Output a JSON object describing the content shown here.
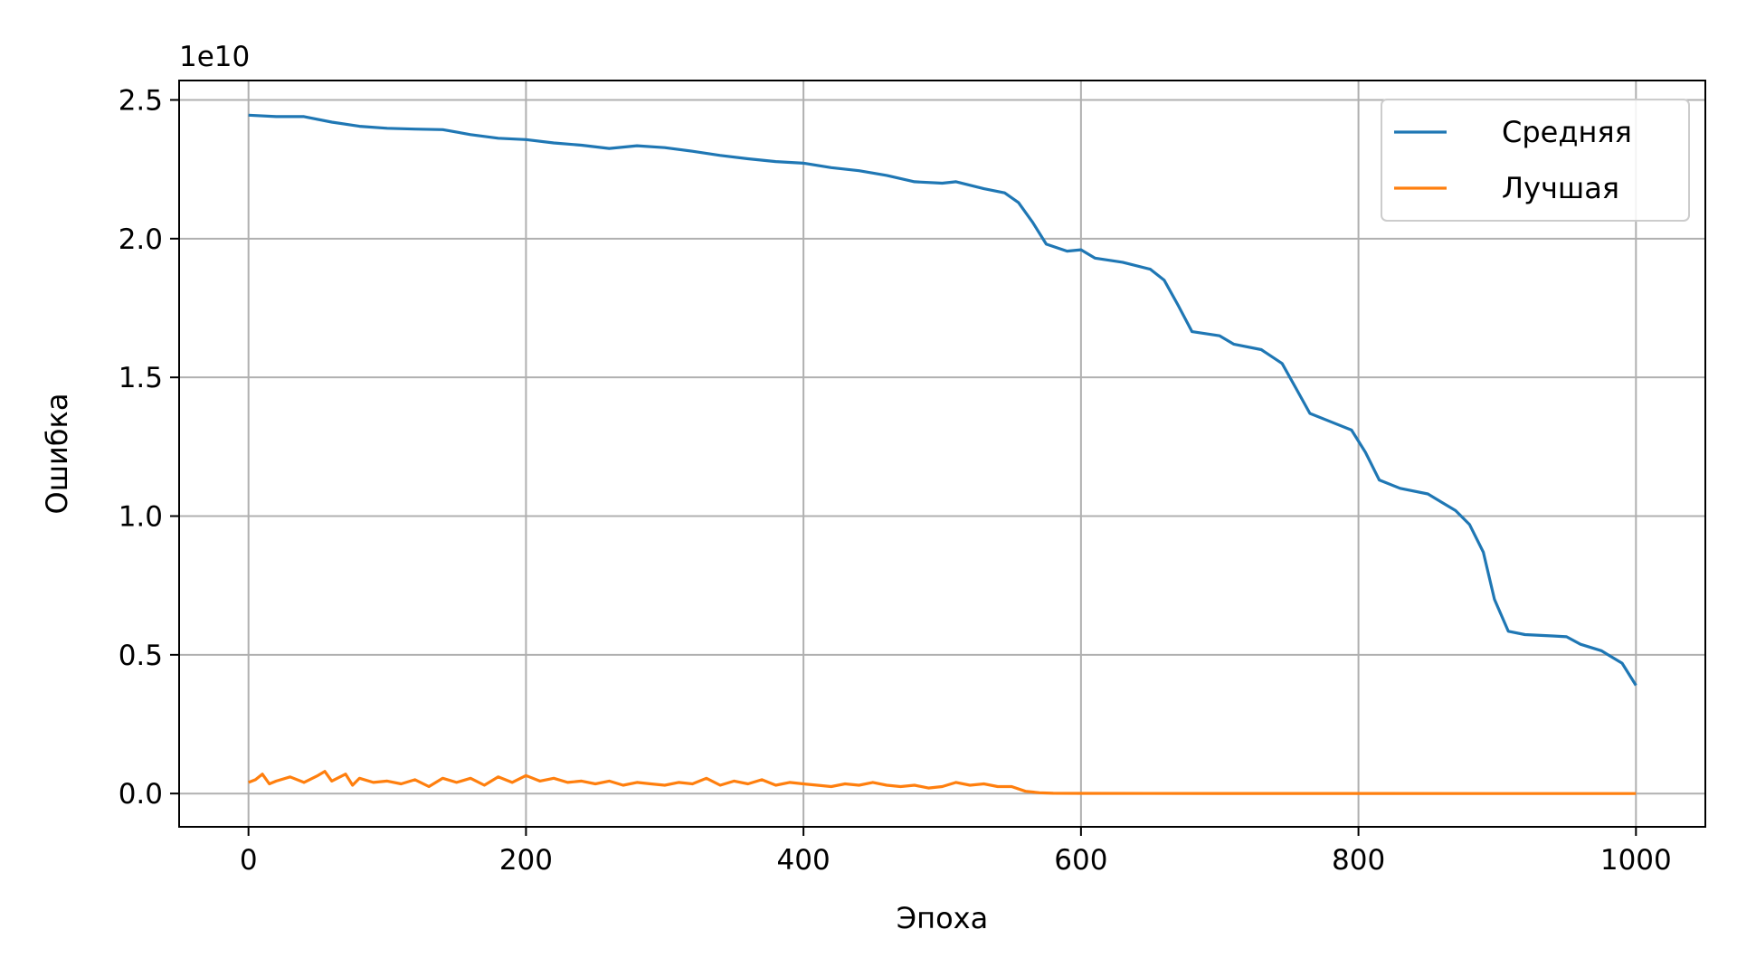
{
  "chart_data": {
    "type": "line",
    "xlabel": "Эпоха",
    "ylabel": "Ошибка",
    "offset_text": "1e10",
    "xlim": [
      -50,
      1050
    ],
    "ylim": [
      -1200000000,
      25700000000
    ],
    "grid": true,
    "legend_position": "top-right",
    "x_ticks": [
      0,
      200,
      400,
      600,
      800,
      1000
    ],
    "x_tick_labels": [
      "0",
      "200",
      "400",
      "600",
      "800",
      "1000"
    ],
    "y_ticks": [
      0,
      5000000000,
      10000000000,
      15000000000,
      20000000000,
      25000000000
    ],
    "y_tick_labels": [
      "0.0",
      "0.5",
      "1.0",
      "1.5",
      "2.0",
      "2.5"
    ],
    "series": [
      {
        "name": "Средняя",
        "color": "#1f77b4",
        "points": [
          [
            0,
            24450000000
          ],
          [
            20,
            24400000000
          ],
          [
            40,
            24400000000
          ],
          [
            60,
            24200000000
          ],
          [
            80,
            24050000000
          ],
          [
            100,
            23980000000
          ],
          [
            120,
            23950000000
          ],
          [
            140,
            23930000000
          ],
          [
            160,
            23750000000
          ],
          [
            180,
            23620000000
          ],
          [
            200,
            23570000000
          ],
          [
            220,
            23450000000
          ],
          [
            240,
            23370000000
          ],
          [
            260,
            23250000000
          ],
          [
            280,
            23350000000
          ],
          [
            300,
            23280000000
          ],
          [
            320,
            23150000000
          ],
          [
            340,
            23000000000
          ],
          [
            360,
            22880000000
          ],
          [
            380,
            22780000000
          ],
          [
            400,
            22720000000
          ],
          [
            420,
            22560000000
          ],
          [
            440,
            22450000000
          ],
          [
            460,
            22280000000
          ],
          [
            480,
            22050000000
          ],
          [
            500,
            22000000000
          ],
          [
            510,
            22050000000
          ],
          [
            530,
            21800000000
          ],
          [
            545,
            21650000000
          ],
          [
            555,
            21300000000
          ],
          [
            565,
            20600000000
          ],
          [
            575,
            19800000000
          ],
          [
            590,
            19550000000
          ],
          [
            600,
            19600000000
          ],
          [
            610,
            19300000000
          ],
          [
            630,
            19150000000
          ],
          [
            650,
            18900000000
          ],
          [
            660,
            18500000000
          ],
          [
            670,
            17600000000
          ],
          [
            680,
            16650000000
          ],
          [
            700,
            16500000000
          ],
          [
            710,
            16200000000
          ],
          [
            730,
            16000000000
          ],
          [
            745,
            15500000000
          ],
          [
            755,
            14600000000
          ],
          [
            765,
            13700000000
          ],
          [
            780,
            13400000000
          ],
          [
            795,
            13100000000
          ],
          [
            805,
            12300000000
          ],
          [
            815,
            11300000000
          ],
          [
            830,
            11000000000
          ],
          [
            850,
            10800000000
          ],
          [
            860,
            10500000000
          ],
          [
            870,
            10200000000
          ],
          [
            880,
            9700000000
          ],
          [
            890,
            8700000000
          ],
          [
            898,
            7000000000
          ],
          [
            908,
            5850000000
          ],
          [
            920,
            5730000000
          ],
          [
            940,
            5680000000
          ],
          [
            950,
            5650000000
          ],
          [
            960,
            5380000000
          ],
          [
            975,
            5150000000
          ],
          [
            990,
            4700000000
          ],
          [
            1000,
            3900000000
          ]
        ]
      },
      {
        "name": "Лучшая",
        "color": "#ff7f0e",
        "points": [
          [
            0,
            400000000
          ],
          [
            5,
            500000000
          ],
          [
            10,
            700000000
          ],
          [
            15,
            350000000
          ],
          [
            20,
            450000000
          ],
          [
            30,
            600000000
          ],
          [
            40,
            400000000
          ],
          [
            50,
            650000000
          ],
          [
            55,
            800000000
          ],
          [
            60,
            450000000
          ],
          [
            70,
            700000000
          ],
          [
            75,
            300000000
          ],
          [
            80,
            550000000
          ],
          [
            90,
            400000000
          ],
          [
            100,
            450000000
          ],
          [
            110,
            350000000
          ],
          [
            120,
            500000000
          ],
          [
            130,
            250000000
          ],
          [
            140,
            550000000
          ],
          [
            150,
            400000000
          ],
          [
            160,
            550000000
          ],
          [
            170,
            300000000
          ],
          [
            180,
            600000000
          ],
          [
            190,
            400000000
          ],
          [
            200,
            650000000
          ],
          [
            210,
            450000000
          ],
          [
            220,
            550000000
          ],
          [
            230,
            400000000
          ],
          [
            240,
            450000000
          ],
          [
            250,
            350000000
          ],
          [
            260,
            450000000
          ],
          [
            270,
            300000000
          ],
          [
            280,
            400000000
          ],
          [
            290,
            350000000
          ],
          [
            300,
            300000000
          ],
          [
            310,
            400000000
          ],
          [
            320,
            350000000
          ],
          [
            330,
            550000000
          ],
          [
            340,
            300000000
          ],
          [
            350,
            450000000
          ],
          [
            360,
            350000000
          ],
          [
            370,
            500000000
          ],
          [
            380,
            300000000
          ],
          [
            390,
            400000000
          ],
          [
            400,
            350000000
          ],
          [
            410,
            300000000
          ],
          [
            420,
            250000000
          ],
          [
            430,
            350000000
          ],
          [
            440,
            300000000
          ],
          [
            450,
            400000000
          ],
          [
            460,
            300000000
          ],
          [
            470,
            250000000
          ],
          [
            480,
            300000000
          ],
          [
            490,
            200000000
          ],
          [
            500,
            250000000
          ],
          [
            510,
            400000000
          ],
          [
            520,
            300000000
          ],
          [
            530,
            350000000
          ],
          [
            540,
            250000000
          ],
          [
            550,
            250000000
          ],
          [
            560,
            80000000
          ],
          [
            570,
            30000000
          ],
          [
            580,
            10000000
          ],
          [
            600,
            5000000
          ],
          [
            700,
            3000000
          ],
          [
            800,
            2000000
          ],
          [
            900,
            1000000
          ],
          [
            1000,
            1000000
          ]
        ]
      }
    ]
  }
}
